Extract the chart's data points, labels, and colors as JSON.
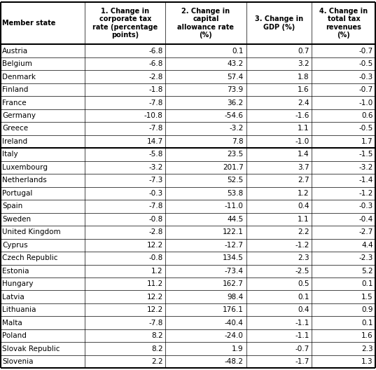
{
  "col_headers": [
    "Member state",
    "1. Change in\ncorporate tax\nrate (percentage\npoints)",
    "2. Change in\ncapital\nallowance rate\n(%)",
    "3. Change in\nGDP (%)",
    "4. Change in\ntotal tax\nrevenues\n(%)"
  ],
  "rows": [
    [
      "Austria",
      "-6.8",
      "0.1",
      "0.7",
      "-0.7"
    ],
    [
      "Belgium",
      "-6.8",
      "43.2",
      "3.2",
      "-0.5"
    ],
    [
      "Denmark",
      "-2.8",
      "57.4",
      "1.8",
      "-0.3"
    ],
    [
      "Finland",
      "-1.8",
      "73.9",
      "1.6",
      "-0.7"
    ],
    [
      "France",
      "-7.8",
      "36.2",
      "2.4",
      "-1.0"
    ],
    [
      "Germany",
      "-10.8",
      "-54.6",
      "-1.6",
      "0.6"
    ],
    [
      "Greece",
      "-7.8",
      "-3.2",
      "1.1",
      "-0.5"
    ],
    [
      "Ireland",
      "14.7",
      "7.8",
      "-1.0",
      "1.7"
    ],
    [
      "Italy",
      "-5.8",
      "23.5",
      "1.4",
      "-1.5"
    ],
    [
      "Luxembourg",
      "-3.2",
      "201.7",
      "3.7",
      "-3.2"
    ],
    [
      "Netherlands",
      "-7.3",
      "52.5",
      "2.7",
      "-1.4"
    ],
    [
      "Portugal",
      "-0.3",
      "53.8",
      "1.2",
      "-1.2"
    ],
    [
      "Spain",
      "-7.8",
      "-11.0",
      "0.4",
      "-0.3"
    ],
    [
      "Sweden",
      "-0.8",
      "44.5",
      "1.1",
      "-0.4"
    ],
    [
      "United Kingdom",
      "-2.8",
      "122.1",
      "2.2",
      "-2.7"
    ],
    [
      "Cyprus",
      "12.2",
      "-12.7",
      "-1.2",
      "4.4"
    ],
    [
      "Czech Republic",
      "-0.8",
      "134.5",
      "2.3",
      "-2.3"
    ],
    [
      "Estonia",
      "1.2",
      "-73.4",
      "-2.5",
      "5.2"
    ],
    [
      "Hungary",
      "11.2",
      "162.7",
      "0.5",
      "0.1"
    ],
    [
      "Latvia",
      "12.2",
      "98.4",
      "0.1",
      "1.5"
    ],
    [
      "Lithuania",
      "12.2",
      "176.1",
      "0.4",
      "0.9"
    ],
    [
      "Malta",
      "-7.8",
      "-40.4",
      "-1.1",
      "0.1"
    ],
    [
      "Poland",
      "8.2",
      "-24.0",
      "-1.1",
      "1.6"
    ],
    [
      "Slovak Republic",
      "8.2",
      "1.9",
      "-0.7",
      "2.3"
    ],
    [
      "Slovenia",
      "2.2",
      "-48.2",
      "-1.7",
      "1.3"
    ]
  ],
  "separator_after_row": 7,
  "col_widths_pts": [
    1.15,
    1.15,
    1.15,
    0.9,
    0.9
  ],
  "background_color": "#ffffff",
  "border_color": "#000000",
  "text_color": "#000000",
  "header_fontsize": 7.0,
  "cell_fontsize": 7.5,
  "thick_lw": 1.5,
  "thin_lw": 0.5
}
